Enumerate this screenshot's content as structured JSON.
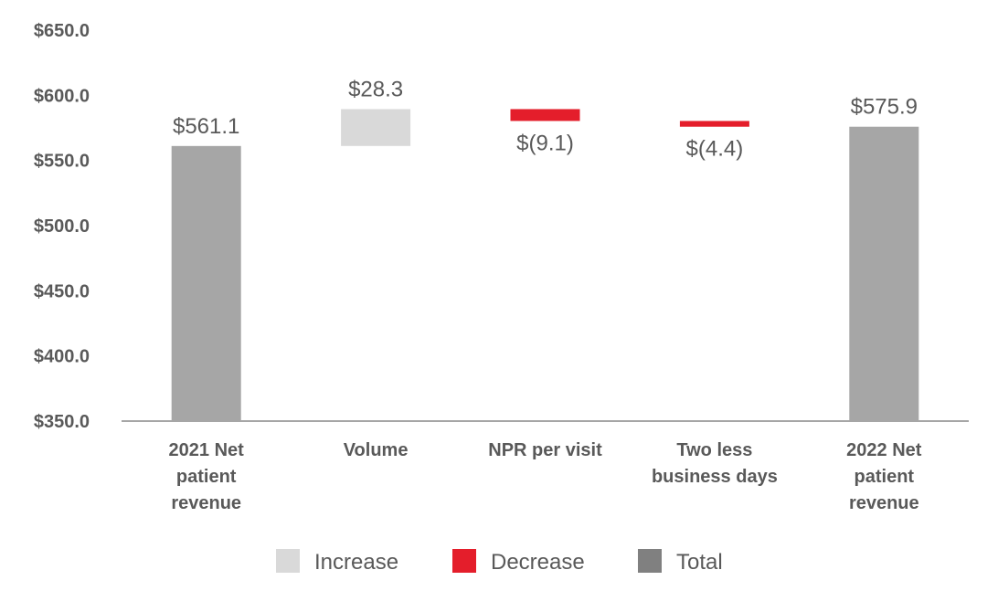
{
  "chart_data": {
    "type": "waterfall",
    "categories": [
      [
        "2021 Net",
        "patient",
        "revenue"
      ],
      [
        "Volume"
      ],
      [
        "NPR per visit"
      ],
      [
        "Two less",
        "business days"
      ],
      [
        "2022 Net",
        "patient",
        "revenue"
      ]
    ],
    "steps": [
      {
        "kind": "total",
        "value": 561.1,
        "label": "$561.1"
      },
      {
        "kind": "increase",
        "value": 28.3,
        "label": "$28.3"
      },
      {
        "kind": "decrease",
        "value": -9.1,
        "label": "$(9.1)"
      },
      {
        "kind": "decrease",
        "value": -4.4,
        "label": "$(4.4)"
      },
      {
        "kind": "total",
        "value": 575.9,
        "label": "$575.9"
      }
    ],
    "ylim": [
      350,
      650
    ],
    "yticks": [
      350,
      400,
      450,
      500,
      550,
      600,
      650
    ],
    "ytick_labels": [
      "$350.0",
      "$400.0",
      "$450.0",
      "$500.0",
      "$550.0",
      "$600.0",
      "$650.0"
    ],
    "legend": [
      {
        "name": "Increase",
        "kind": "increase"
      },
      {
        "name": "Decrease",
        "kind": "decrease"
      },
      {
        "name": "Total",
        "kind": "total"
      }
    ],
    "legend_position": "bottom",
    "grid": false,
    "colors": {
      "increase": "#d9d9d9",
      "decrease": "#e41e2b",
      "total": "#a6a6a6",
      "total_legend": "#808080",
      "axis": "#a6a6a6",
      "text": "#595959"
    }
  }
}
